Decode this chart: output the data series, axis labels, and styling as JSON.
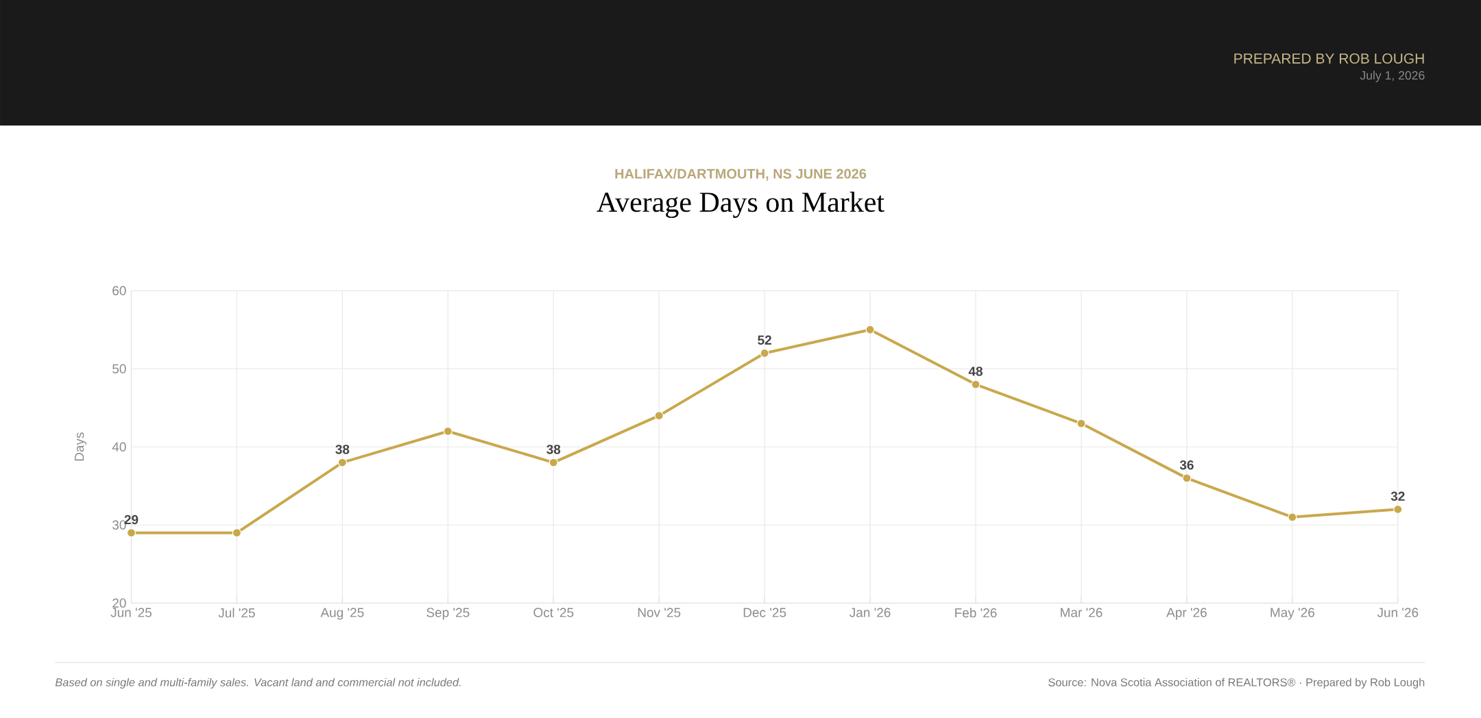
{
  "chart_data": {
    "type": "line",
    "title": "Average Days on Market",
    "subtitle": "HALIFAX/DARTMOUTH, NS JUNE 2026",
    "ylabel": "Days",
    "categories": [
      "Jun '25",
      "Jul '25",
      "Aug '25",
      "Sep '25",
      "Oct '25",
      "Nov '25",
      "Dec '25",
      "Jan '26",
      "Feb '26",
      "Mar '26",
      "Apr '26",
      "May '26",
      "Jun '26"
    ],
    "values": [
      29,
      29,
      38,
      42,
      38,
      44,
      52,
      55,
      48,
      43,
      36,
      31,
      32
    ],
    "value_labels": [
      "29",
      null,
      "38",
      null,
      "38",
      null,
      "52",
      null,
      "48",
      null,
      "36",
      null,
      "32"
    ],
    "color": "#c9a84c",
    "ylim": [
      20,
      60
    ],
    "yticks": [
      20,
      30,
      40,
      50,
      60
    ],
    "grid": true,
    "marker": "circle",
    "annotations": [
      "PREPARED BY ROB LOUGH",
      "July 1, 2026",
      "Based on single and multi-family sales. Vacant land and commercial not included.",
      "Source: Nova Scotia Association of REALTORS® · Prepared by Rob Lough"
    ]
  }
}
